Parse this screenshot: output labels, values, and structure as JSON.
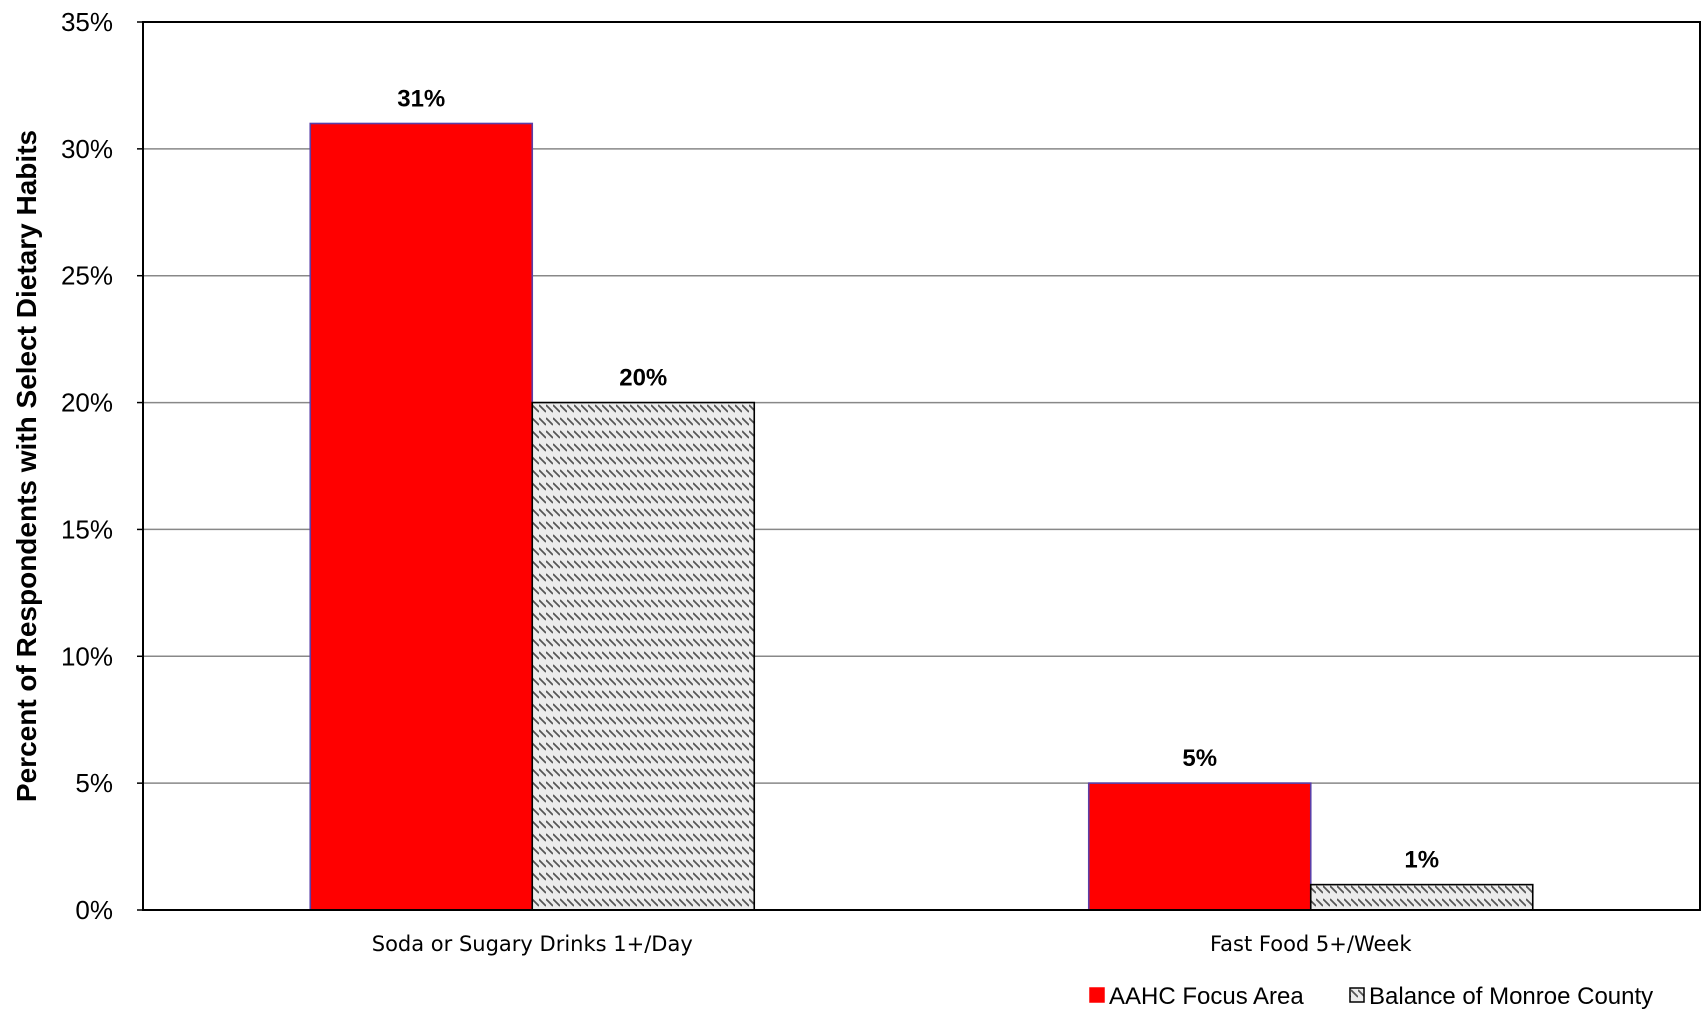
{
  "chart_data": {
    "type": "bar",
    "categories": [
      "Soda or Sugary Drinks 1+/Day",
      "Fast Food 5+/Week"
    ],
    "series": [
      {
        "name": "AAHC Focus Area",
        "values": [
          31,
          5
        ],
        "labels": [
          "31%",
          "5%"
        ],
        "color": "#ff0000",
        "border": "#5b3fa8",
        "pattern": "solid"
      },
      {
        "name": "Balance of Monroe County",
        "values": [
          20,
          1
        ],
        "labels": [
          "20%",
          "1%"
        ],
        "color": "#ececec",
        "border": "#000000",
        "pattern": "diagonal-hatch"
      }
    ],
    "title": "",
    "xlabel": "",
    "ylabel": "Percent of Respondents with Select Dietary Habits",
    "ylim": [
      0,
      35
    ],
    "yticks": [
      0,
      5,
      10,
      15,
      20,
      25,
      30,
      35
    ],
    "ytick_labels": [
      "0%",
      "5%",
      "10%",
      "15%",
      "20%",
      "25%",
      "30%",
      "35%"
    ],
    "grid": true,
    "legend": "bottom-right"
  }
}
